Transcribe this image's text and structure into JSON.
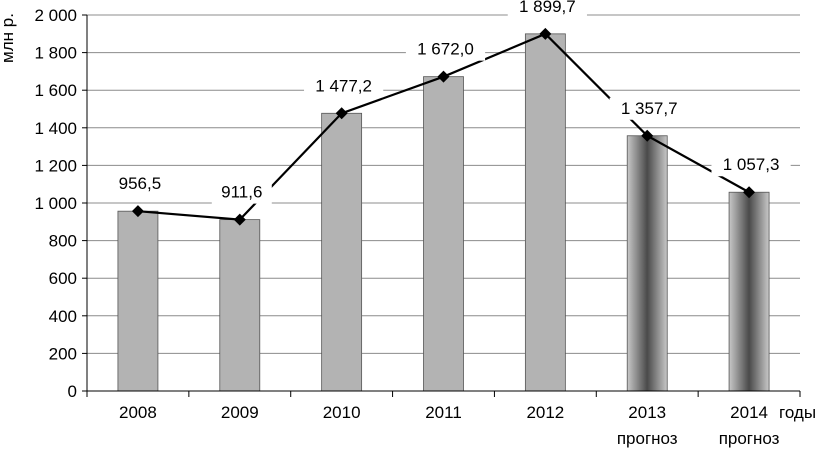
{
  "chart_data": {
    "type": "bar",
    "categories": [
      "2008",
      "2009",
      "2010",
      "2011",
      "2012",
      "2013",
      "2014"
    ],
    "category_sublabels": [
      "",
      "",
      "",
      "",
      "",
      "прогноз",
      "прогноз"
    ],
    "values": [
      956.5,
      911.6,
      1477.2,
      1672.0,
      1899.7,
      1357.7,
      1057.3
    ],
    "data_labels": [
      "956,5",
      "911,6",
      "1 477,2",
      "1 672,0",
      "1 899,7",
      "1 357,7",
      "1 057,3"
    ],
    "forecast_flags": [
      false,
      false,
      false,
      false,
      false,
      true,
      true
    ],
    "overlay_line": true,
    "ylabel": "млн р.",
    "xlabel": "годы",
    "ylim": [
      0,
      2000
    ],
    "yticks": [
      0,
      200,
      400,
      600,
      800,
      1000,
      1200,
      1400,
      1600,
      1800,
      2000
    ],
    "ytick_labels": [
      "0",
      "200",
      "400",
      "600",
      "800",
      "1 000",
      "1 200",
      "1 400",
      "1 600",
      "1 800",
      "2 000"
    ],
    "grid": true,
    "legend": "none",
    "colors": {
      "bar": "#b3b3b3",
      "bar_stroke": "#555555",
      "forecast_dark": "#4a4a4a",
      "forecast_light": "#c8c8c8",
      "line": "#000000",
      "grid": "#8c8c8c"
    }
  }
}
